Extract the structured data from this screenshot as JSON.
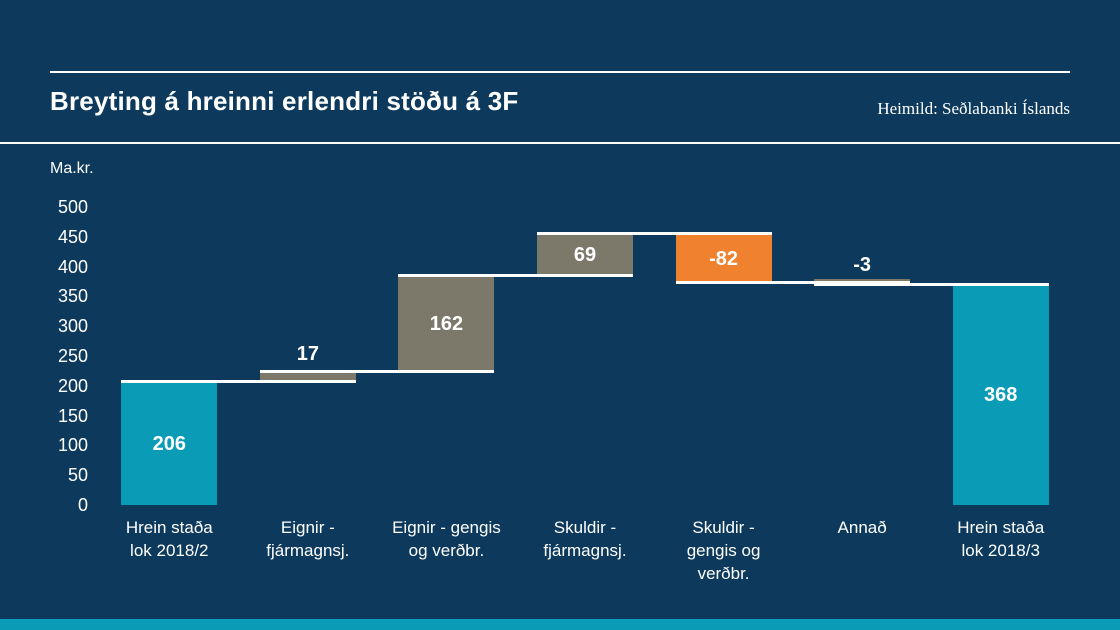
{
  "page": {
    "background_color": "#0d3a5c",
    "accent_strip_color": "#0a9bb6"
  },
  "header": {
    "title": "Breyting á hreinni erlendri stöðu á 3F",
    "source": "Heimild: Seðlabanki Íslands"
  },
  "chart_data": {
    "type": "bar",
    "subtype": "waterfall",
    "title": "Breyting á hreinni erlendri stöðu á 3F",
    "ylabel": "Ma.kr.",
    "ylim": [
      0,
      500
    ],
    "ytick_step": 50,
    "grid": false,
    "legend": false,
    "categories": [
      "Hrein staða\nlok 2018/2",
      "Eignir -\nfjármagnsj.",
      "Eignir - gengis\nog verðbr.",
      "Skuldir -\nfjármagnsj.",
      "Skuldir -\ngengis og\nverðbr.",
      "Annað",
      "Hrein staða\nlok 2018/3"
    ],
    "values": [
      206,
      17,
      162,
      69,
      -82,
      -3,
      368
    ],
    "value_labels": [
      "206",
      "17",
      "162",
      "69",
      "-82",
      "-3",
      "368"
    ],
    "roles": [
      "total",
      "delta",
      "delta",
      "delta",
      "delta",
      "delta",
      "total"
    ],
    "bar_colors": [
      "teal",
      "olive",
      "olive",
      "olive",
      "orange",
      "olive",
      "teal"
    ],
    "label_inside": [
      true,
      false,
      true,
      true,
      true,
      false,
      true
    ],
    "palette": {
      "teal": "#0a9bb6",
      "olive": "#7c796a",
      "orange": "#f0822f",
      "connector": "#ffffff"
    }
  }
}
